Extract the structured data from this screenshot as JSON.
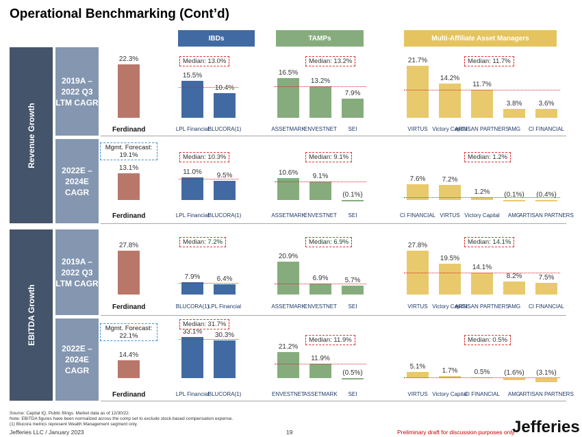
{
  "title": "Operational Benchmarking (Cont’d)",
  "colors": {
    "ferdinand": "#b9776a",
    "ibd": "#416aa3",
    "tamp": "#86ac7e",
    "maam": "#e8c96c",
    "ibd_header": "#416aa3",
    "tamp_header": "#86ac7e",
    "maam_header": "#e5c460",
    "side": "#44546a",
    "row": "#8496b0",
    "median": "#e03030",
    "forecast": "#3a8fd0"
  },
  "groups": {
    "ibd": "IBDs",
    "tamp": "TAMPs",
    "maam": "Multi-Affiliate Asset Managers"
  },
  "sections": {
    "revenue": "Revenue Growth",
    "ebitda": "EBITDA Growth"
  },
  "row_labels": [
    "2019A – 2022 Q3 LTM CAGR",
    "2022E – 2024E CAGR",
    "2019A – 2022 Q3 LTM CAGR",
    "2022E – 2024E CAGR"
  ],
  "ferdinand_label": "Ferdinand",
  "chart_data": [
    {
      "type": "bar",
      "section": "Revenue Growth",
      "period": "2019A – 2022 Q3 LTM CAGR",
      "ferdinand": {
        "value": 22.3,
        "label": "22.3%"
      },
      "forecast_label": "",
      "groups": {
        "ibd": {
          "median": "Median: 13.0%",
          "median_value": 13.0,
          "names": [
            "LPL Financial",
            "BLUCORA(1)"
          ],
          "values": [
            15.5,
            10.4
          ],
          "labels": [
            "15.5%",
            "10.4%"
          ]
        },
        "tamp": {
          "median": "Median: 13.2%",
          "median_value": 13.2,
          "names": [
            "ASSETMARK",
            "ENVESTNET",
            "SEI"
          ],
          "values": [
            16.5,
            13.2,
            7.9
          ],
          "labels": [
            "16.5%",
            "13.2%",
            "7.9%"
          ]
        },
        "maam": {
          "median": "Median: 11.7%",
          "median_value": 11.7,
          "names": [
            "VIRTUS",
            "Victory Capital",
            "ARTISAN PARTNERS",
            "AMG",
            "CI FINANCIAL"
          ],
          "values": [
            21.7,
            14.2,
            11.7,
            3.8,
            3.6
          ],
          "labels": [
            "21.7%",
            "14.2%",
            "11.7%",
            "3.8%",
            "3.6%"
          ]
        }
      }
    },
    {
      "type": "bar",
      "section": "Revenue Growth",
      "period": "2022E – 2024E CAGR",
      "ferdinand": {
        "value": 13.1,
        "label": "13.1%"
      },
      "forecast_label": "Mgmt. Forecast: 19.1%",
      "groups": {
        "ibd": {
          "median": "Median: 10.3%",
          "median_value": 10.3,
          "names": [
            "LPL Financial",
            "BLUCORA(1)"
          ],
          "values": [
            11.0,
            9.5
          ],
          "labels": [
            "11.0%",
            "9.5%"
          ]
        },
        "tamp": {
          "median": "Median: 9.1%",
          "median_value": 9.1,
          "names": [
            "ASSETMARK",
            "ENVESTNET",
            "SEI"
          ],
          "values": [
            10.6,
            9.1,
            -0.1
          ],
          "labels": [
            "10.6%",
            "9.1%",
            "(0.1%)"
          ]
        },
        "maam": {
          "median": "Median: 1.2%",
          "median_value": 1.2,
          "names": [
            "CI FINANCIAL",
            "VIRTUS",
            "Victory Capital",
            "AMG",
            "ARTISAN PARTNERS"
          ],
          "values": [
            7.6,
            7.2,
            1.2,
            -0.1,
            -0.4
          ],
          "labels": [
            "7.6%",
            "7.2%",
            "1.2%",
            "(0.1%)",
            "(0.4%)"
          ]
        }
      }
    },
    {
      "type": "bar",
      "section": "EBITDA Growth",
      "period": "2019A – 2022 Q3 LTM CAGR",
      "ferdinand": {
        "value": 27.8,
        "label": "27.8%"
      },
      "forecast_label": "",
      "groups": {
        "ibd": {
          "median": "Median: 7.2%",
          "median_value": 7.2,
          "names": [
            "BLUCORA(1)",
            "LPL Financial"
          ],
          "values": [
            7.9,
            6.4
          ],
          "labels": [
            "7.9%",
            "6.4%"
          ]
        },
        "tamp": {
          "median": "Median: 6.9%",
          "median_value": 6.9,
          "names": [
            "ASSETMARK",
            "ENVESTNET",
            "SEI"
          ],
          "values": [
            20.9,
            6.9,
            5.7
          ],
          "labels": [
            "20.9%",
            "6.9%",
            "5.7%"
          ]
        },
        "maam": {
          "median": "Median: 14.1%",
          "median_value": 14.1,
          "names": [
            "VIRTUS",
            "Victory Capital",
            "ARTISAN PARTNERS",
            "AMG",
            "CI FINANCIAL"
          ],
          "values": [
            27.8,
            19.5,
            14.1,
            8.2,
            7.5
          ],
          "labels": [
            "27.8%",
            "19.5%",
            "14.1%",
            "8.2%",
            "7.5%"
          ]
        }
      }
    },
    {
      "type": "bar",
      "section": "EBITDA Growth",
      "period": "2022E – 2024E CAGR",
      "ferdinand": {
        "value": 14.4,
        "label": "14.4%"
      },
      "forecast_label": "Mgmt. Forecast: 22.1%",
      "groups": {
        "ibd": {
          "median": "Median: 31.7%",
          "median_value": 31.7,
          "names": [
            "LPL Financial",
            "BLUCORA(1)"
          ],
          "values": [
            33.1,
            30.3
          ],
          "labels": [
            "33.1%",
            "30.3%"
          ]
        },
        "tamp": {
          "median": "Median: 11.9%",
          "median_value": 11.9,
          "names": [
            "ENVESTNET",
            "ASSETMARK",
            "SEI"
          ],
          "values": [
            21.2,
            11.9,
            -0.5
          ],
          "labels": [
            "21.2%",
            "11.9%",
            "(0.5%)"
          ]
        },
        "maam": {
          "median": "Median: 0.5%",
          "median_value": 0.5,
          "names": [
            "VIRTUS",
            "Victory Capital",
            "CI FINANCIAL",
            "AMG",
            "ARTISAN PARTNERS"
          ],
          "values": [
            5.1,
            1.7,
            0.5,
            -1.6,
            -3.1
          ],
          "labels": [
            "5.1%",
            "1.7%",
            "0.5%",
            "(1.6%)",
            "(3.1%)"
          ]
        }
      }
    }
  ],
  "footer": {
    "source": "Source: Capital IQ, Public filings. Market data as of 12/30/22.",
    "note": "Note: EBITDA figures have been normalized across the comp set to exclude stock-based compensation expense.",
    "fn1": "(1)    Blucora metrics represent Wealth Management segment only.",
    "company": "Jefferies LLC / January 2023",
    "page": "19",
    "draft": "Preliminary draft for discussion purposes only",
    "brand": "Jefferies"
  }
}
